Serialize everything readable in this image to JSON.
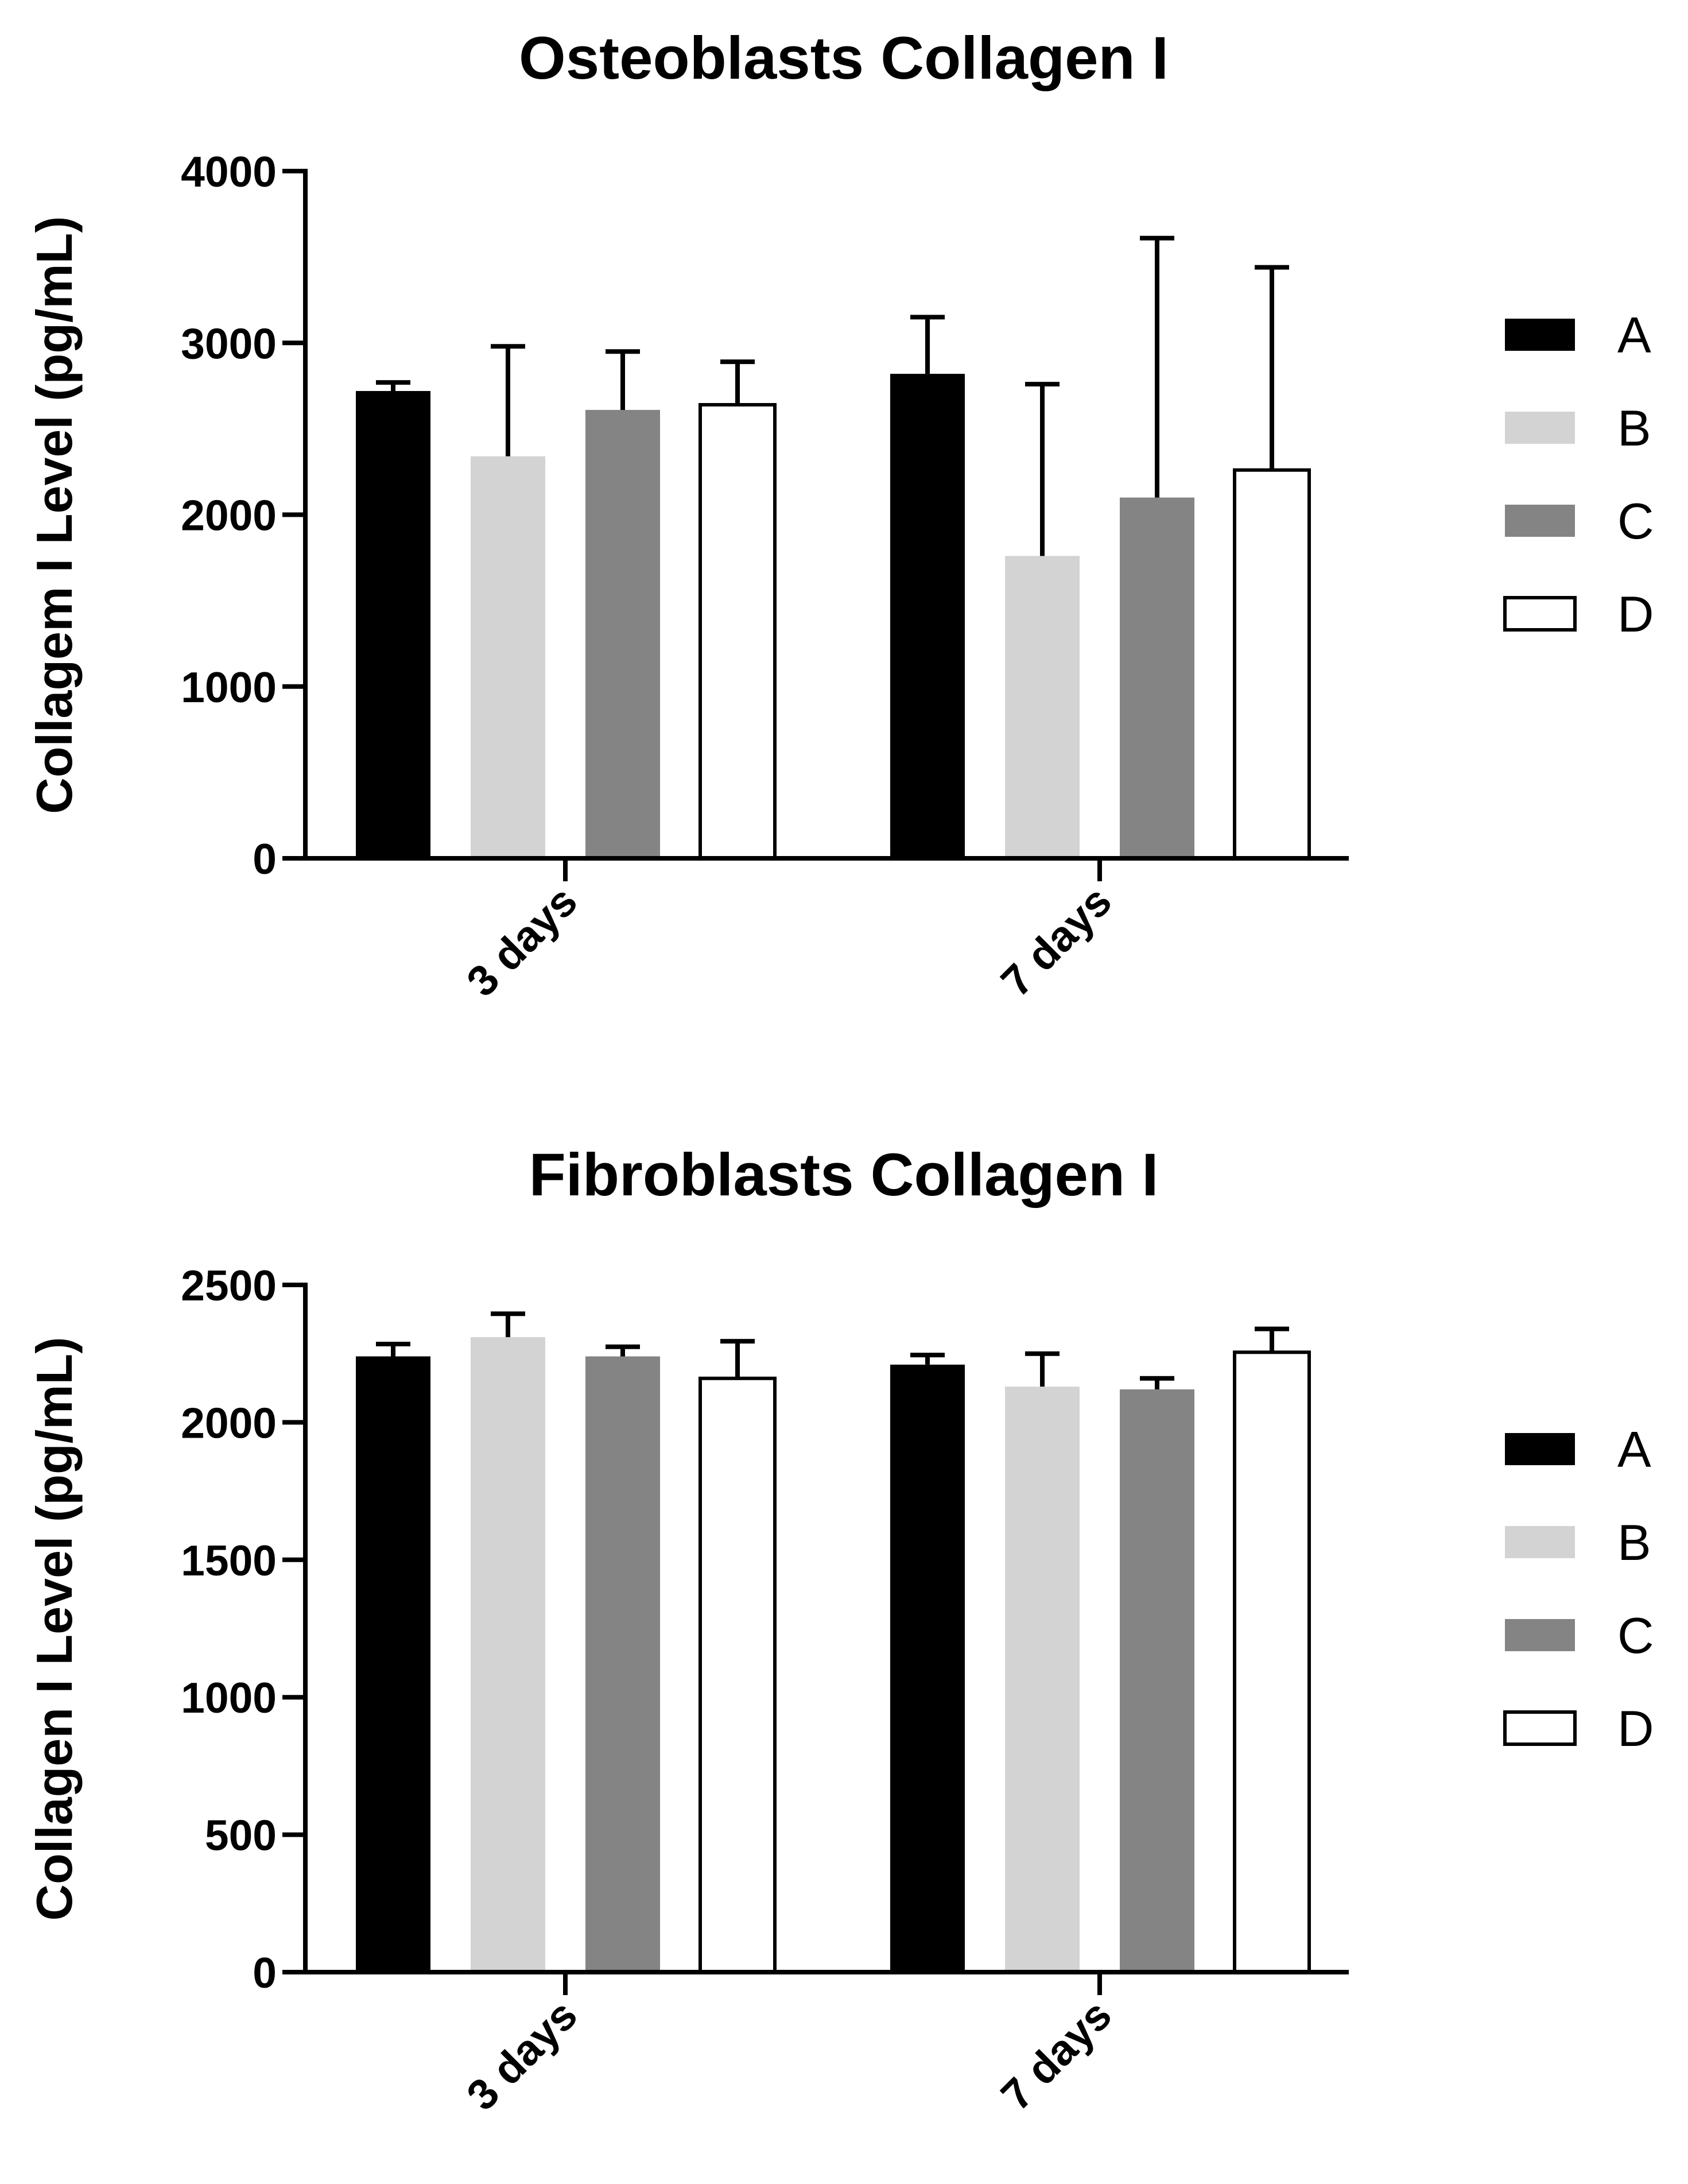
{
  "chart_data": [
    {
      "type": "bar",
      "title": "Osteoblasts Collagen I",
      "xlabel": "",
      "ylabel": "Collagem I Level (pg/mL)",
      "categories": [
        "3 days",
        "7 days"
      ],
      "ylim": [
        0,
        4000
      ],
      "yticks": [
        "0",
        "1000",
        "2000",
        "3000",
        "4000"
      ],
      "grid": false,
      "legend": "right",
      "series": [
        {
          "name": "A",
          "values": [
            2720,
            2820
          ],
          "errors": [
            50,
            330
          ],
          "color": "#000000"
        },
        {
          "name": "B",
          "values": [
            2340,
            1760
          ],
          "errors": [
            640,
            1000
          ],
          "color": "#d3d3d3"
        },
        {
          "name": "C",
          "values": [
            2610,
            2100
          ],
          "errors": [
            340,
            1510
          ],
          "color": "#848484"
        },
        {
          "name": "D",
          "values": [
            2640,
            2260
          ],
          "errors": [
            250,
            1180
          ],
          "color": "#ffffff"
        }
      ]
    },
    {
      "type": "bar",
      "title": "Fibroblasts Collagen I",
      "xlabel": "",
      "ylabel": "Collagen I Level (pg/mL)",
      "categories": [
        "3 days",
        "7 days"
      ],
      "ylim": [
        0,
        2500
      ],
      "yticks": [
        "0",
        "500",
        "1000",
        "1500",
        "2000",
        "2500"
      ],
      "grid": false,
      "legend": "right",
      "series": [
        {
          "name": "A",
          "values": [
            2240,
            2210
          ],
          "errors": [
            45,
            35
          ],
          "color": "#000000"
        },
        {
          "name": "B",
          "values": [
            2310,
            2130
          ],
          "errors": [
            85,
            120
          ],
          "color": "#d3d3d3"
        },
        {
          "name": "C",
          "values": [
            2240,
            2120
          ],
          "errors": [
            35,
            40
          ],
          "color": "#848484"
        },
        {
          "name": "D",
          "values": [
            2160,
            2255
          ],
          "errors": [
            135,
            85
          ],
          "color": "#ffffff"
        }
      ]
    }
  ]
}
